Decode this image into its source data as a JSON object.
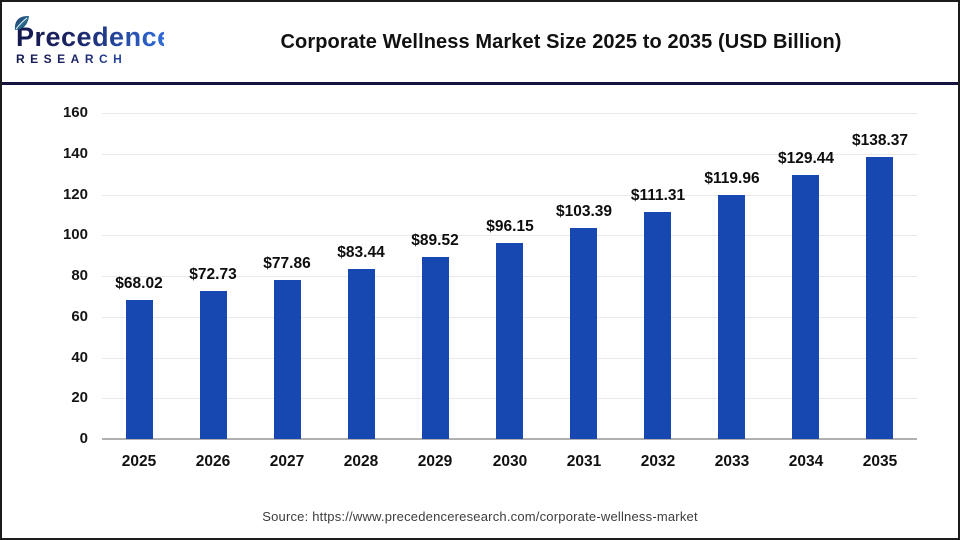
{
  "header": {
    "logo": {
      "line1": "Precedence",
      "line2": "RESEARCH",
      "color_dark": "#1c2465",
      "color_light": "#2f6bd8"
    },
    "title": "Corporate Wellness Market Size 2025 to 2035 (USD Billion)"
  },
  "chart_data": {
    "type": "bar",
    "title": "Corporate Wellness Market Size 2025 to 2035 (USD Billion)",
    "categories": [
      "2025",
      "2026",
      "2027",
      "2028",
      "2029",
      "2030",
      "2031",
      "2032",
      "2033",
      "2034",
      "2035"
    ],
    "values": [
      68.02,
      72.73,
      77.86,
      83.44,
      89.52,
      96.15,
      103.39,
      111.31,
      119.96,
      129.44,
      138.37
    ],
    "value_prefix": "$",
    "xlabel": "",
    "ylabel": "",
    "ylim": [
      0,
      160
    ],
    "yticks": [
      0,
      20,
      40,
      60,
      80,
      100,
      120,
      140,
      160
    ],
    "grid": true,
    "legend": "none",
    "bar_color": "#1747b0",
    "gridline_color": "#e9e9e9",
    "axis_line_color": "#b0b0b0",
    "label_color": "#111111"
  },
  "footer": {
    "source": "Source: https://www.precedenceresearch.com/corporate-wellness-market"
  }
}
